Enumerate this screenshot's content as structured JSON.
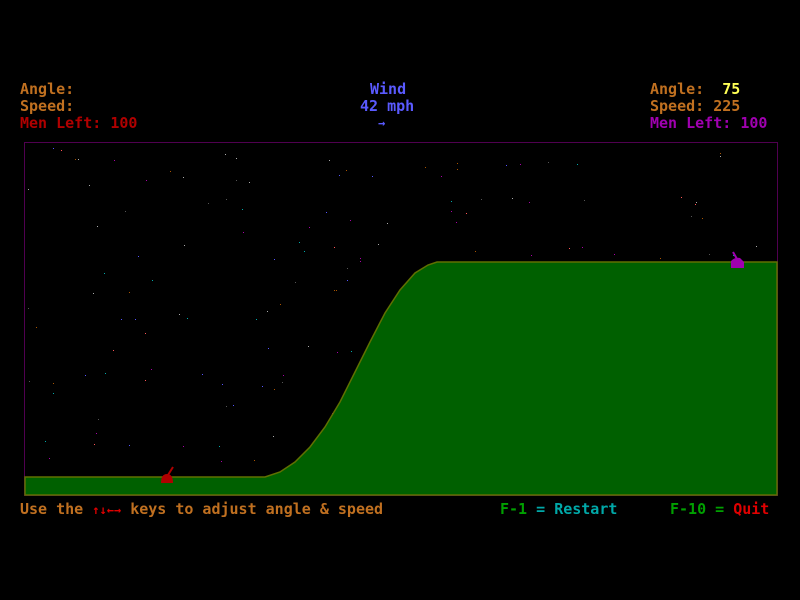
{
  "player1": {
    "angle_label": "Angle:",
    "angle_value": "",
    "speed_label": "Speed:",
    "speed_value": "",
    "men_left_label": "Men Left:",
    "men_left_value": "100",
    "color": "#b00000"
  },
  "wind": {
    "label": "Wind",
    "value": "42 mph",
    "direction_icon": "arrow-right-icon",
    "arrow": "→"
  },
  "player2": {
    "angle_label": "Angle:",
    "angle_value": "75",
    "speed_label": "Speed:",
    "speed_value": "225",
    "men_left_label": "Men Left:",
    "men_left_value": "100",
    "color": "#a000b0"
  },
  "footer": {
    "instruction_prefix": "Use the",
    "keys": "↑↓←→",
    "instruction_suffix": "keys to adjust angle & speed",
    "restart_key": "F-1",
    "restart_eq": "=",
    "restart_label": "Restart",
    "quit_key": "F-10",
    "quit_eq": "=",
    "quit_label": "Quit"
  },
  "colors": {
    "terrain": "#006000",
    "terrain_edge": "#607000",
    "frame": "#500050",
    "sky": "#000000"
  }
}
